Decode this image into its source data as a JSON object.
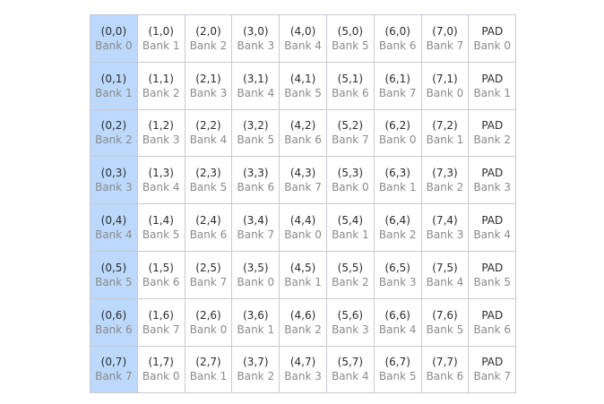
{
  "grid": {
    "rows": [
      {
        "cells": [
          {
            "coord": "(0,0)",
            "bank": "Bank 0",
            "highlight": true
          },
          {
            "coord": "(1,0)",
            "bank": "Bank 1"
          },
          {
            "coord": "(2,0)",
            "bank": "Bank 2"
          },
          {
            "coord": "(3,0)",
            "bank": "Bank 3"
          },
          {
            "coord": "(4,0)",
            "bank": "Bank 4"
          },
          {
            "coord": "(5,0)",
            "bank": "Bank 5"
          },
          {
            "coord": "(6,0)",
            "bank": "Bank 6"
          },
          {
            "coord": "(7,0)",
            "bank": "Bank 7"
          },
          {
            "coord": "PAD",
            "bank": "Bank 0"
          }
        ]
      },
      {
        "cells": [
          {
            "coord": "(0,1)",
            "bank": "Bank 1",
            "highlight": true
          },
          {
            "coord": "(1,1)",
            "bank": "Bank 2"
          },
          {
            "coord": "(2,1)",
            "bank": "Bank 3"
          },
          {
            "coord": "(3,1)",
            "bank": "Bank 4"
          },
          {
            "coord": "(4,1)",
            "bank": "Bank 5"
          },
          {
            "coord": "(5,1)",
            "bank": "Bank 6"
          },
          {
            "coord": "(6,1)",
            "bank": "Bank 7"
          },
          {
            "coord": "(7,1)",
            "bank": "Bank 0"
          },
          {
            "coord": "PAD",
            "bank": "Bank 1"
          }
        ]
      },
      {
        "cells": [
          {
            "coord": "(0,2)",
            "bank": "Bank 2",
            "highlight": true
          },
          {
            "coord": "(1,2)",
            "bank": "Bank 3"
          },
          {
            "coord": "(2,2)",
            "bank": "Bank 4"
          },
          {
            "coord": "(3,2)",
            "bank": "Bank 5"
          },
          {
            "coord": "(4,2)",
            "bank": "Bank 6"
          },
          {
            "coord": "(5,2)",
            "bank": "Bank 7"
          },
          {
            "coord": "(6,2)",
            "bank": "Bank 0"
          },
          {
            "coord": "(7,2)",
            "bank": "Bank 1"
          },
          {
            "coord": "PAD",
            "bank": "Bank 2"
          }
        ]
      },
      {
        "cells": [
          {
            "coord": "(0,3)",
            "bank": "Bank 3",
            "highlight": true
          },
          {
            "coord": "(1,3)",
            "bank": "Bank 4"
          },
          {
            "coord": "(2,3)",
            "bank": "Bank 5"
          },
          {
            "coord": "(3,3)",
            "bank": "Bank 6"
          },
          {
            "coord": "(4,3)",
            "bank": "Bank 7"
          },
          {
            "coord": "(5,3)",
            "bank": "Bank 0"
          },
          {
            "coord": "(6,3)",
            "bank": "Bank 1"
          },
          {
            "coord": "(7,3)",
            "bank": "Bank 2"
          },
          {
            "coord": "PAD",
            "bank": "Bank 3"
          }
        ]
      },
      {
        "cells": [
          {
            "coord": "(0,4)",
            "bank": "Bank 4",
            "highlight": true
          },
          {
            "coord": "(1,4)",
            "bank": "Bank 5"
          },
          {
            "coord": "(2,4)",
            "bank": "Bank 6"
          },
          {
            "coord": "(3,4)",
            "bank": "Bank 7"
          },
          {
            "coord": "(4,4)",
            "bank": "Bank 0"
          },
          {
            "coord": "(5,4)",
            "bank": "Bank 1"
          },
          {
            "coord": "(6,4)",
            "bank": "Bank 2"
          },
          {
            "coord": "(7,4)",
            "bank": "Bank 3"
          },
          {
            "coord": "PAD",
            "bank": "Bank 4"
          }
        ]
      },
      {
        "cells": [
          {
            "coord": "(0,5)",
            "bank": "Bank 5",
            "highlight": true
          },
          {
            "coord": "(1,5)",
            "bank": "Bank 6"
          },
          {
            "coord": "(2,5)",
            "bank": "Bank 7"
          },
          {
            "coord": "(3,5)",
            "bank": "Bank 0"
          },
          {
            "coord": "(4,5)",
            "bank": "Bank 1"
          },
          {
            "coord": "(5,5)",
            "bank": "Bank 2"
          },
          {
            "coord": "(6,5)",
            "bank": "Bank 3"
          },
          {
            "coord": "(7,5)",
            "bank": "Bank 4"
          },
          {
            "coord": "PAD",
            "bank": "Bank 5"
          }
        ]
      },
      {
        "cells": [
          {
            "coord": "(0,6)",
            "bank": "Bank 6",
            "highlight": true
          },
          {
            "coord": "(1,6)",
            "bank": "Bank 7"
          },
          {
            "coord": "(2,6)",
            "bank": "Bank 0"
          },
          {
            "coord": "(3,6)",
            "bank": "Bank 1"
          },
          {
            "coord": "(4,6)",
            "bank": "Bank 2"
          },
          {
            "coord": "(5,6)",
            "bank": "Bank 3"
          },
          {
            "coord": "(6,6)",
            "bank": "Bank 4"
          },
          {
            "coord": "(7,6)",
            "bank": "Bank 5"
          },
          {
            "coord": "PAD",
            "bank": "Bank 6"
          }
        ]
      },
      {
        "cells": [
          {
            "coord": "(0,7)",
            "bank": "Bank 7",
            "highlight": true
          },
          {
            "coord": "(1,7)",
            "bank": "Bank 0"
          },
          {
            "coord": "(2,7)",
            "bank": "Bank 1"
          },
          {
            "coord": "(3,7)",
            "bank": "Bank 2"
          },
          {
            "coord": "(4,7)",
            "bank": "Bank 3"
          },
          {
            "coord": "(5,7)",
            "bank": "Bank 4"
          },
          {
            "coord": "(6,7)",
            "bank": "Bank 5"
          },
          {
            "coord": "(7,7)",
            "bank": "Bank 6"
          },
          {
            "coord": "PAD",
            "bank": "Bank 7"
          }
        ]
      }
    ]
  },
  "colors": {
    "highlight": "#bcd9fb",
    "border": "#c9c9d3",
    "coord_text": "#2c2c2c",
    "bank_text": "#8a8a8a"
  }
}
